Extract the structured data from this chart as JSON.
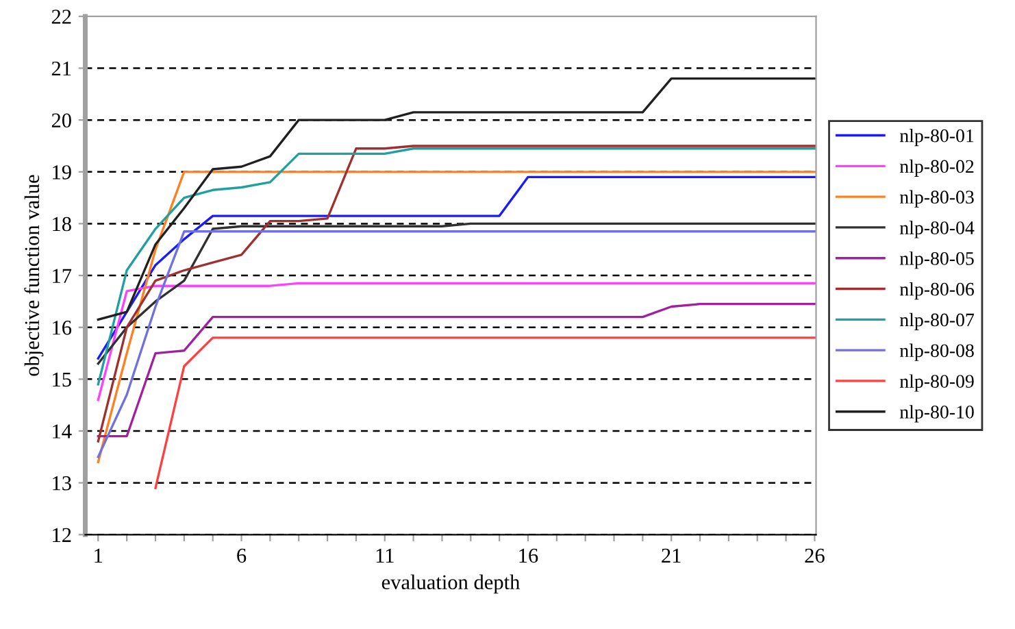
{
  "chart_data": {
    "type": "line",
    "xlabel": "evaluation depth",
    "ylabel": "objective function value",
    "x": [
      1,
      2,
      3,
      4,
      5,
      6,
      7,
      8,
      9,
      10,
      11,
      12,
      13,
      14,
      15,
      16,
      17,
      18,
      19,
      20,
      21,
      22,
      23,
      24,
      25,
      26
    ],
    "xlim": [
      0.55,
      26.05
    ],
    "ylim": [
      12,
      22
    ],
    "xticks": [
      1,
      {
        "value": 2,
        "label": null
      },
      {
        "value": 3,
        "label": null
      },
      {
        "value": 4,
        "label": null
      },
      {
        "value": 5,
        "label": null
      },
      6,
      {
        "value": 7,
        "label": null
      },
      {
        "value": 8,
        "label": null
      },
      {
        "value": 9,
        "label": null
      },
      {
        "value": 10,
        "label": null
      },
      11,
      {
        "value": 12,
        "label": null
      },
      {
        "value": 13,
        "label": null
      },
      {
        "value": 14,
        "label": null
      },
      {
        "value": 15,
        "label": null
      },
      16,
      {
        "value": 17,
        "label": null
      },
      {
        "value": 18,
        "label": null
      },
      {
        "value": 19,
        "label": null
      },
      {
        "value": 20,
        "label": null
      },
      21,
      {
        "value": 22,
        "label": null
      },
      {
        "value": 23,
        "label": null
      },
      {
        "value": 24,
        "label": null
      },
      {
        "value": 25,
        "label": null
      },
      26
    ],
    "yticks": [
      12,
      13,
      14,
      15,
      16,
      17,
      18,
      19,
      20,
      21,
      22
    ],
    "grid": "y",
    "legend": "right",
    "marker": "none",
    "line_style": "solid",
    "series": [
      {
        "name": "nlp-80-01",
        "color": "#1a1aff",
        "values": [
          15.4,
          16.3,
          17.2,
          17.7,
          18.15,
          18.15,
          18.15,
          18.15,
          18.15,
          18.15,
          18.15,
          18.15,
          18.15,
          18.15,
          18.15,
          18.9,
          18.9,
          18.9,
          18.9,
          18.9,
          18.9,
          18.9,
          18.9,
          18.9,
          18.9,
          18.9
        ]
      },
      {
        "name": "nlp-80-02",
        "color": "#ff40ff",
        "values": [
          14.6,
          16.7,
          16.8,
          16.8,
          16.8,
          16.8,
          16.8,
          16.85,
          16.85,
          16.85,
          16.85,
          16.85,
          16.85,
          16.85,
          16.85,
          16.85,
          16.85,
          16.85,
          16.85,
          16.85,
          16.85,
          16.85,
          16.85,
          16.85,
          16.85,
          16.85
        ]
      },
      {
        "name": "nlp-80-03",
        "color": "#ff8020",
        "values": [
          13.4,
          15.5,
          17.5,
          19.0,
          19.0,
          19.0,
          19.0,
          19.0,
          19.0,
          19.0,
          19.0,
          19.0,
          19.0,
          19.0,
          19.0,
          19.0,
          19.0,
          19.0,
          19.0,
          19.0,
          19.0,
          19.0,
          19.0,
          19.0,
          19.0,
          19.0
        ]
      },
      {
        "name": "nlp-80-04",
        "color": "#303030",
        "values": [
          15.3,
          16.0,
          16.5,
          16.9,
          17.9,
          17.95,
          17.95,
          17.95,
          17.95,
          17.95,
          17.95,
          17.95,
          17.95,
          18.0,
          18.0,
          18.0,
          18.0,
          18.0,
          18.0,
          18.0,
          18.0,
          18.0,
          18.0,
          18.0,
          18.0,
          18.0
        ]
      },
      {
        "name": "nlp-80-05",
        "color": "#a020a0",
        "values": [
          13.9,
          13.9,
          15.5,
          15.55,
          16.2,
          16.2,
          16.2,
          16.2,
          16.2,
          16.2,
          16.2,
          16.2,
          16.2,
          16.2,
          16.2,
          16.2,
          16.2,
          16.2,
          16.2,
          16.2,
          16.4,
          16.45,
          16.45,
          16.45,
          16.45,
          16.45
        ]
      },
      {
        "name": "nlp-80-06",
        "color": "#a03030",
        "values": [
          13.8,
          16.0,
          16.9,
          17.1,
          17.25,
          17.4,
          18.05,
          18.05,
          18.1,
          19.45,
          19.45,
          19.5,
          19.5,
          19.5,
          19.5,
          19.5,
          19.5,
          19.5,
          19.5,
          19.5,
          19.5,
          19.5,
          19.5,
          19.5,
          19.5,
          19.5
        ]
      },
      {
        "name": "nlp-80-07",
        "color": "#20a0a0",
        "values": [
          14.9,
          17.1,
          17.9,
          18.5,
          18.65,
          18.7,
          18.8,
          19.35,
          19.35,
          19.35,
          19.35,
          19.45,
          19.45,
          19.45,
          19.45,
          19.45,
          19.45,
          19.45,
          19.45,
          19.45,
          19.45,
          19.45,
          19.45,
          19.45,
          19.45,
          19.45
        ]
      },
      {
        "name": "nlp-80-08",
        "color": "#7070e0",
        "values": [
          13.5,
          14.7,
          16.4,
          17.85,
          17.85,
          17.85,
          17.85,
          17.85,
          17.85,
          17.85,
          17.85,
          17.85,
          17.85,
          17.85,
          17.85,
          17.85,
          17.85,
          17.85,
          17.85,
          17.85,
          17.85,
          17.85,
          17.85,
          17.85,
          17.85,
          17.85
        ]
      },
      {
        "name": "nlp-80-09",
        "color": "#ff4040",
        "values": [
          null,
          null,
          12.9,
          15.25,
          15.8,
          15.8,
          15.8,
          15.8,
          15.8,
          15.8,
          15.8,
          15.8,
          15.8,
          15.8,
          15.8,
          15.8,
          15.8,
          15.8,
          15.8,
          15.8,
          15.8,
          15.8,
          15.8,
          15.8,
          15.8,
          15.8
        ]
      },
      {
        "name": "nlp-80-10",
        "color": "#202020",
        "values": [
          16.15,
          16.3,
          17.6,
          18.3,
          19.05,
          19.1,
          19.3,
          20.0,
          20.0,
          20.0,
          20.0,
          20.15,
          20.15,
          20.15,
          20.15,
          20.15,
          20.15,
          20.15,
          20.15,
          20.15,
          20.8,
          20.8,
          20.8,
          20.8,
          20.8,
          20.8
        ]
      }
    ]
  }
}
